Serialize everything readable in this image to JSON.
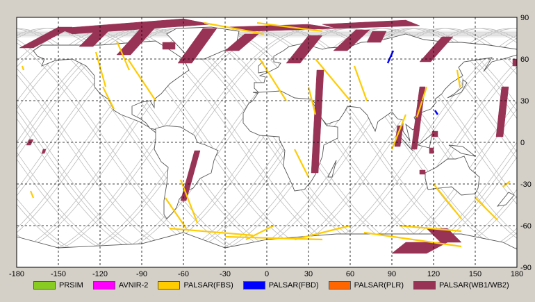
{
  "axes": {
    "x_ticks": [
      "-180",
      "-150",
      "-120",
      "-90",
      "-60",
      "-30",
      "0",
      "30",
      "60",
      "90",
      "120",
      "150",
      "180"
    ],
    "y_ticks": [
      "90",
      "60",
      "30",
      "0",
      "-30",
      "-60",
      "-90"
    ],
    "xlim": [
      -180,
      180
    ],
    "ylim": [
      -90,
      90
    ],
    "grid": "dashed",
    "background": "#ffffff",
    "grid_color": "#000000"
  },
  "legend": {
    "placement": "bottom",
    "items": [
      {
        "label": "PRSIM",
        "color": "#88cc22"
      },
      {
        "label": "AVNIR-2",
        "color": "#ff00ff"
      },
      {
        "label": "PALSAR(FBS)",
        "color": "#ffcc00"
      },
      {
        "label": "PALSAR(FBD)",
        "color": "#0000ff"
      },
      {
        "label": "PALSAR(PLR)",
        "color": "#ff6600"
      },
      {
        "label": "PALSAR(WB1/WB2)",
        "color": "#993355"
      }
    ]
  },
  "colors": {
    "window_bg": "#d4d0c8",
    "coastline": "#555555",
    "orbit_track": "#bbbbbb"
  },
  "observations": {
    "wb": [
      [
        [
          -178,
          68
        ],
        [
          -168,
          68
        ],
        [
          -140,
          83
        ],
        [
          -150,
          83
        ]
      ],
      [
        [
          -150,
          82
        ],
        [
          -60,
          89
        ],
        [
          -40,
          85
        ],
        [
          -140,
          78
        ]
      ],
      [
        [
          -135,
          69
        ],
        [
          -125,
          69
        ],
        [
          -112,
          82
        ],
        [
          -122,
          82
        ]
      ],
      [
        [
          -108,
          63
        ],
        [
          -98,
          63
        ],
        [
          -80,
          83
        ],
        [
          -90,
          83
        ]
      ],
      [
        [
          -64,
          57
        ],
        [
          -54,
          57
        ],
        [
          -36,
          82
        ],
        [
          -46,
          82
        ]
      ],
      [
        [
          -30,
          83
        ],
        [
          30,
          85
        ],
        [
          50,
          82
        ],
        [
          -10,
          80
        ]
      ],
      [
        [
          -75,
          72
        ],
        [
          -66,
          72
        ],
        [
          -66,
          67
        ],
        [
          -75,
          67
        ]
      ],
      [
        [
          -30,
          66
        ],
        [
          -20,
          66
        ],
        [
          -6,
          78
        ],
        [
          -16,
          78
        ]
      ],
      [
        [
          14,
          57
        ],
        [
          24,
          57
        ],
        [
          40,
          77
        ],
        [
          30,
          77
        ]
      ],
      [
        [
          48,
          66
        ],
        [
          58,
          66
        ],
        [
          74,
          81
        ],
        [
          64,
          81
        ]
      ],
      [
        [
          40,
          85
        ],
        [
          100,
          88
        ],
        [
          110,
          84
        ],
        [
          50,
          82
        ]
      ],
      [
        [
          72,
          72
        ],
        [
          82,
          72
        ],
        [
          86,
          80
        ],
        [
          76,
          80
        ]
      ],
      [
        [
          110,
          58
        ],
        [
          118,
          58
        ],
        [
          134,
          76
        ],
        [
          126,
          76
        ]
      ],
      [
        [
          32,
          -22
        ],
        [
          37,
          -22
        ],
        [
          41,
          52
        ],
        [
          36,
          52
        ]
      ],
      [
        [
          -62,
          -42
        ],
        [
          -58,
          -42
        ],
        [
          -48,
          -6
        ],
        [
          -52,
          -6
        ]
      ],
      [
        [
          104,
          -5
        ],
        [
          108,
          -5
        ],
        [
          114,
          40
        ],
        [
          110,
          40
        ]
      ],
      [
        [
          165,
          4
        ],
        [
          170,
          4
        ],
        [
          174,
          40
        ],
        [
          169,
          40
        ]
      ],
      [
        [
          125,
          -72
        ],
        [
          140,
          -72
        ],
        [
          130,
          -62
        ],
        [
          115,
          -62
        ]
      ],
      [
        [
          90,
          -80
        ],
        [
          115,
          -80
        ],
        [
          130,
          -72
        ],
        [
          100,
          -72
        ]
      ],
      [
        [
          -173,
          -2
        ],
        [
          -170,
          -2
        ],
        [
          -168,
          2
        ],
        [
          -171,
          2
        ]
      ],
      [
        [
          -162,
          -8
        ],
        [
          -160,
          -8
        ],
        [
          -159,
          -5
        ],
        [
          -161,
          -5
        ]
      ],
      [
        [
          177,
          55
        ],
        [
          180,
          55
        ],
        [
          180,
          60
        ],
        [
          177,
          60
        ]
      ],
      [
        [
          110,
          -23
        ],
        [
          114,
          -23
        ],
        [
          114,
          -20
        ],
        [
          110,
          -20
        ]
      ],
      [
        [
          117,
          -8
        ],
        [
          120,
          -8
        ],
        [
          120,
          -4
        ],
        [
          117,
          -4
        ]
      ],
      [
        [
          119,
          4
        ],
        [
          123,
          4
        ],
        [
          123,
          8
        ],
        [
          119,
          8
        ]
      ],
      [
        [
          92,
          -3
        ],
        [
          96,
          -3
        ],
        [
          98,
          12
        ],
        [
          94,
          12
        ]
      ]
    ],
    "fbs": [
      [
        [
          -123,
          65
        ],
        [
          -116,
          40
        ]
      ],
      [
        [
          -108,
          73
        ],
        [
          -99,
          52
        ]
      ],
      [
        [
          -118,
          40
        ],
        [
          -110,
          24
        ]
      ],
      [
        [
          -62,
          -27
        ],
        [
          -50,
          -58
        ]
      ],
      [
        [
          -73,
          -40
        ],
        [
          -58,
          -62
        ]
      ],
      [
        [
          -70,
          -62
        ],
        [
          -10,
          -67
        ]
      ],
      [
        [
          -30,
          -68
        ],
        [
          40,
          -70
        ]
      ],
      [
        [
          5,
          -60
        ],
        [
          -15,
          -70
        ]
      ],
      [
        [
          60,
          -60
        ],
        [
          20,
          -70
        ]
      ],
      [
        [
          70,
          -65
        ],
        [
          140,
          -75
        ]
      ],
      [
        [
          95,
          -60
        ],
        [
          140,
          -64
        ]
      ],
      [
        [
          120,
          -30
        ],
        [
          140,
          -55
        ]
      ],
      [
        [
          150,
          -40
        ],
        [
          166,
          -56
        ]
      ],
      [
        [
          -45,
          86
        ],
        [
          -2,
          78
        ]
      ],
      [
        [
          -7,
          86
        ],
        [
          40,
          80
        ]
      ],
      [
        [
          35,
          60
        ],
        [
          60,
          30
        ]
      ],
      [
        [
          -5,
          60
        ],
        [
          14,
          30
        ]
      ],
      [
        [
          20,
          -5
        ],
        [
          30,
          -25
        ]
      ],
      [
        [
          63,
          55
        ],
        [
          72,
          30
        ]
      ],
      [
        [
          30,
          40
        ],
        [
          35,
          20
        ]
      ],
      [
        [
          -100,
          60
        ],
        [
          -80,
          30
        ]
      ],
      [
        [
          -170,
          -35
        ],
        [
          -168,
          -40
        ]
      ],
      [
        [
          -176,
          55
        ],
        [
          -175,
          52
        ]
      ],
      [
        [
          100,
          20
        ],
        [
          90,
          -5
        ]
      ],
      [
        [
          115,
          40
        ],
        [
          108,
          18
        ]
      ],
      [
        [
          137,
          52
        ],
        [
          139,
          40
        ]
      ],
      [
        [
          175,
          -28
        ],
        [
          170,
          -32
        ]
      ]
    ],
    "fbd": [
      [
        [
          91,
          66
        ],
        [
          87,
          57
        ]
      ],
      [
        [
          121,
          23
        ],
        [
          123,
          20
        ]
      ]
    ]
  },
  "land": [
    [
      [
        -168,
        66
      ],
      [
        -162,
        70
      ],
      [
        -141,
        70
      ],
      [
        -120,
        70
      ],
      [
        -95,
        72
      ],
      [
        -80,
        73
      ],
      [
        -72,
        68
      ],
      [
        -60,
        60
      ],
      [
        -56,
        52
      ],
      [
        -66,
        45
      ],
      [
        -70,
        42
      ],
      [
        -76,
        35
      ],
      [
        -81,
        31
      ],
      [
        -81,
        25
      ],
      [
        -84,
        30
      ],
      [
        -90,
        29
      ],
      [
        -97,
        26
      ],
      [
        -97,
        20
      ],
      [
        -91,
        17
      ],
      [
        -87,
        14
      ],
      [
        -84,
        10
      ],
      [
        -79,
        9
      ],
      [
        -80,
        7
      ],
      [
        -85,
        11
      ],
      [
        -92,
        15
      ],
      [
        -105,
        20
      ],
      [
        -110,
        23
      ],
      [
        -114,
        31
      ],
      [
        -117,
        33
      ],
      [
        -120,
        35
      ],
      [
        -124,
        40
      ],
      [
        -124,
        48
      ],
      [
        -130,
        55
      ],
      [
        -140,
        60
      ],
      [
        -152,
        59
      ],
      [
        -162,
        55
      ],
      [
        -160,
        60
      ],
      [
        -165,
        62
      ]
    ],
    [
      [
        -80,
        10
      ],
      [
        -72,
        12
      ],
      [
        -62,
        11
      ],
      [
        -52,
        5
      ],
      [
        -50,
        0
      ],
      [
        -44,
        -2
      ],
      [
        -35,
        -6
      ],
      [
        -38,
        -13
      ],
      [
        -40,
        -22
      ],
      [
        -48,
        -26
      ],
      [
        -53,
        -33
      ],
      [
        -58,
        -35
      ],
      [
        -63,
        -41
      ],
      [
        -65,
        -47
      ],
      [
        -68,
        -51
      ],
      [
        -72,
        -55
      ],
      [
        -74,
        -52
      ],
      [
        -74,
        -42
      ],
      [
        -72,
        -30
      ],
      [
        -71,
        -18
      ],
      [
        -76,
        -14
      ],
      [
        -81,
        -5
      ],
      [
        -80,
        2
      ]
    ],
    [
      [
        -10,
        36
      ],
      [
        -6,
        36
      ],
      [
        -9,
        39
      ],
      [
        -9,
        43
      ],
      [
        -2,
        43
      ],
      [
        -1,
        47
      ],
      [
        -5,
        48
      ],
      [
        2,
        51
      ],
      [
        8,
        54
      ],
      [
        10,
        57
      ],
      [
        5,
        58
      ],
      [
        5,
        62
      ],
      [
        12,
        66
      ],
      [
        16,
        69
      ],
      [
        25,
        71
      ],
      [
        30,
        70
      ],
      [
        40,
        67
      ],
      [
        44,
        68
      ],
      [
        60,
        69
      ],
      [
        68,
        72
      ],
      [
        80,
        73
      ],
      [
        100,
        78
      ],
      [
        113,
        74
      ],
      [
        130,
        72
      ],
      [
        140,
        72
      ],
      [
        160,
        70
      ],
      [
        180,
        67
      ],
      [
        180,
        63
      ],
      [
        170,
        60
      ],
      [
        162,
        58
      ],
      [
        156,
        51
      ],
      [
        162,
        61
      ],
      [
        155,
        60
      ],
      [
        142,
        58
      ],
      [
        138,
        54
      ],
      [
        141,
        48
      ],
      [
        133,
        43
      ],
      [
        128,
        38
      ],
      [
        126,
        35
      ],
      [
        121,
        31
      ],
      [
        122,
        29
      ],
      [
        118,
        24
      ],
      [
        110,
        21
      ],
      [
        106,
        18
      ],
      [
        109,
        12
      ],
      [
        105,
        9
      ],
      [
        100,
        13
      ],
      [
        103,
        1
      ],
      [
        98,
        8
      ],
      [
        98,
        16
      ],
      [
        94,
        17
      ],
      [
        90,
        22
      ],
      [
        80,
        15
      ],
      [
        78,
        8
      ],
      [
        72,
        20
      ],
      [
        67,
        25
      ],
      [
        58,
        26
      ],
      [
        56,
        22
      ],
      [
        52,
        16
      ],
      [
        43,
        13
      ],
      [
        37,
        20
      ],
      [
        35,
        28
      ],
      [
        32,
        31
      ],
      [
        25,
        31
      ],
      [
        20,
        31
      ],
      [
        10,
        33
      ],
      [
        10,
        37
      ],
      [
        0,
        36
      ],
      [
        -5,
        35
      ]
    ],
    [
      [
        -17,
        14
      ],
      [
        -17,
        21
      ],
      [
        -13,
        28
      ],
      [
        -10,
        30
      ],
      [
        -6,
        36
      ],
      [
        10,
        37
      ],
      [
        20,
        32
      ],
      [
        32,
        31
      ],
      [
        34,
        27
      ],
      [
        39,
        18
      ],
      [
        43,
        12
      ],
      [
        51,
        11
      ],
      [
        51,
        3
      ],
      [
        41,
        -2
      ],
      [
        40,
        -10
      ],
      [
        35,
        -23
      ],
      [
        32,
        -28
      ],
      [
        27,
        -34
      ],
      [
        20,
        -35
      ],
      [
        18,
        -30
      ],
      [
        12,
        -17
      ],
      [
        13,
        -6
      ],
      [
        9,
        2
      ],
      [
        9,
        4
      ],
      [
        -5,
        5
      ],
      [
        -12,
        8
      ]
    ],
    [
      [
        114,
        -22
      ],
      [
        122,
        -18
      ],
      [
        130,
        -12
      ],
      [
        136,
        -12
      ],
      [
        142,
        -10
      ],
      [
        146,
        -19
      ],
      [
        153,
        -25
      ],
      [
        152,
        -33
      ],
      [
        150,
        -37
      ],
      [
        140,
        -38
      ],
      [
        133,
        -32
      ],
      [
        124,
        -33
      ],
      [
        116,
        -34
      ],
      [
        114,
        -26
      ]
    ],
    [
      [
        -55,
        60
      ],
      [
        -45,
        60
      ],
      [
        -22,
        70
      ],
      [
        -20,
        80
      ],
      [
        -40,
        83
      ],
      [
        -65,
        82
      ],
      [
        -72,
        78
      ]
    ],
    [
      [
        -180,
        -68
      ],
      [
        -150,
        -76
      ],
      [
        -90,
        -73
      ],
      [
        -60,
        -65
      ],
      [
        -30,
        -76
      ],
      [
        0,
        -70
      ],
      [
        50,
        -66
      ],
      [
        100,
        -66
      ],
      [
        140,
        -66
      ],
      [
        170,
        -72
      ],
      [
        180,
        -77
      ],
      [
        180,
        -90
      ],
      [
        -180,
        -90
      ]
    ],
    [
      [
        44,
        -25
      ],
      [
        49,
        -15
      ],
      [
        50,
        -13
      ],
      [
        47,
        -25
      ]
    ],
    [
      [
        95,
        5
      ],
      [
        105,
        -6
      ],
      [
        102,
        -3
      ]
    ],
    [
      [
        109,
        -2
      ],
      [
        119,
        6
      ],
      [
        117,
        -4
      ]
    ],
    [
      [
        130,
        32
      ],
      [
        135,
        35
      ],
      [
        141,
        40
      ],
      [
        141,
        45
      ],
      [
        144,
        43
      ],
      [
        140,
        36
      ],
      [
        135,
        34
      ]
    ],
    [
      [
        -6,
        50
      ],
      [
        0,
        51
      ],
      [
        -3,
        58
      ],
      [
        -6,
        55
      ]
    ],
    [
      [
        166,
        -46
      ],
      [
        174,
        -36
      ],
      [
        178,
        -38
      ],
      [
        172,
        -45
      ]
    ],
    [
      [
        131,
        -2
      ],
      [
        141,
        -3
      ],
      [
        150,
        -10
      ],
      [
        140,
        -8
      ]
    ]
  ]
}
